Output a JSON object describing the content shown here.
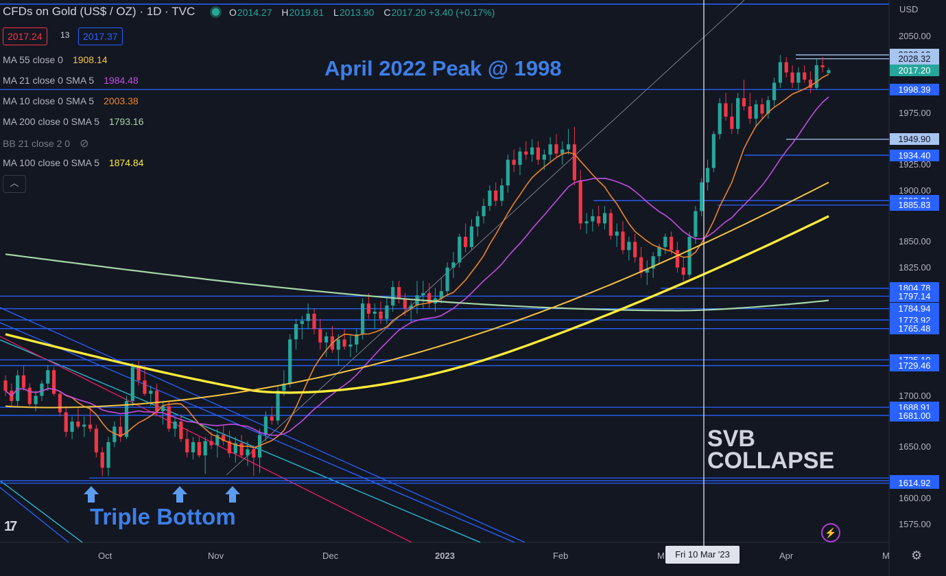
{
  "header": {
    "title": "CFDs on Gold (US$ / OZ) · 1D · TVC",
    "open_label": "O",
    "open": "2014.27",
    "high_label": "H",
    "high": "2019.81",
    "low_label": "L",
    "low": "2013.90",
    "close_label": "C",
    "close": "2017.20 +3.40 (+0.17%)",
    "sell": "2017.24",
    "spread": "13",
    "buy": "2017.37"
  },
  "indicators": [
    {
      "label": "MA 55 close 0",
      "value": "1908.14",
      "color": "#f5c542"
    },
    {
      "label": "MA 21 close 0 SMA 5",
      "value": "1984.48",
      "color": "#c34de1"
    },
    {
      "label": "MA 10 close 0 SMA 5",
      "value": "2003.38",
      "color": "#f0852b"
    },
    {
      "label": "MA 200 close 0 SMA 5",
      "value": "1793.16",
      "color": "#a5d6a7"
    },
    {
      "label": "BB 21 close 2 0",
      "value": "",
      "color": "#787b86"
    },
    {
      "label": "MA 100 close 0 SMA 5",
      "value": "1874.84",
      "color": "#ffeb3b"
    }
  ],
  "annotations": {
    "april_peak": "April 2022 Peak @ 1998",
    "svb_line1": "SVB",
    "svb_line2": "COLLAPSE",
    "triple_bottom": "Triple Bottom"
  },
  "axis": {
    "currency": "USD",
    "y_ticks": [
      "2050.00",
      "1975.00",
      "1925.00",
      "1900.00",
      "1850.00",
      "1825.00",
      "1700.00",
      "1650.00",
      "1600.00",
      "1575.00"
    ],
    "x_ticks": [
      "Oct",
      "Nov",
      "Dec",
      "2023",
      "Feb",
      "M",
      "Apr",
      "M"
    ],
    "crosshair_date": "Fri 10 Mar '23"
  },
  "chart_data": {
    "type": "candlestick",
    "ylim": [
      1560,
      2060
    ],
    "price_labels": [
      {
        "value": 2032.13,
        "text": "2032.13",
        "bg": "#a8c5f0",
        "fg": "#131722"
      },
      {
        "value": 2028.32,
        "text": "2028.32",
        "bg": "#a8c5f0",
        "fg": "#131722"
      },
      {
        "value": 2017.2,
        "text": "2017.20",
        "bg": "#26a69a",
        "fg": "#ffffff"
      },
      {
        "value": 1998.39,
        "text": "1998.39",
        "bg": "#2962ff",
        "fg": "#ffffff"
      },
      {
        "value": 1949.9,
        "text": "1949.90",
        "bg": "#a8c5f0",
        "fg": "#131722"
      },
      {
        "value": 1934.4,
        "text": "1934.40",
        "bg": "#2962ff",
        "fg": "#ffffff"
      },
      {
        "value": 1890.21,
        "text": "1890.21",
        "bg": "#2962ff",
        "fg": "#ffffff"
      },
      {
        "value": 1885.83,
        "text": "1885.83",
        "bg": "#2962ff",
        "fg": "#ffffff"
      },
      {
        "value": 1804.78,
        "text": "1804.78",
        "bg": "#2962ff",
        "fg": "#ffffff"
      },
      {
        "value": 1797.14,
        "text": "1797.14",
        "bg": "#2962ff",
        "fg": "#ffffff"
      },
      {
        "value": 1784.94,
        "text": "1784.94",
        "bg": "#2962ff",
        "fg": "#ffffff"
      },
      {
        "value": 1773.92,
        "text": "1773.92",
        "bg": "#2962ff",
        "fg": "#ffffff"
      },
      {
        "value": 1765.48,
        "text": "1765.48",
        "bg": "#2962ff",
        "fg": "#ffffff"
      },
      {
        "value": 1735.1,
        "text": "1735.10",
        "bg": "#2962ff",
        "fg": "#ffffff"
      },
      {
        "value": 1729.46,
        "text": "1729.46",
        "bg": "#2962ff",
        "fg": "#ffffff"
      },
      {
        "value": 1688.91,
        "text": "1688.91",
        "bg": "#2962ff",
        "fg": "#ffffff"
      },
      {
        "value": 1681.0,
        "text": "1681.00",
        "bg": "#2962ff",
        "fg": "#ffffff"
      },
      {
        "value": 1617.3,
        "text": "1617.30",
        "bg": "#2962ff",
        "fg": "#ffffff"
      },
      {
        "value": 1614.92,
        "text": "1614.92",
        "bg": "#2962ff",
        "fg": "#ffffff"
      }
    ],
    "candles": [
      [
        1715,
        1720,
        1700,
        1705
      ],
      [
        1705,
        1712,
        1690,
        1695
      ],
      [
        1695,
        1725,
        1690,
        1720
      ],
      [
        1720,
        1730,
        1705,
        1708
      ],
      [
        1708,
        1712,
        1690,
        1692
      ],
      [
        1692,
        1705,
        1685,
        1700
      ],
      [
        1700,
        1715,
        1695,
        1712
      ],
      [
        1712,
        1730,
        1705,
        1725
      ],
      [
        1725,
        1728,
        1700,
        1702
      ],
      [
        1702,
        1705,
        1680,
        1684
      ],
      [
        1684,
        1690,
        1660,
        1665
      ],
      [
        1665,
        1680,
        1658,
        1675
      ],
      [
        1675,
        1688,
        1668,
        1670
      ],
      [
        1670,
        1680,
        1660,
        1672
      ],
      [
        1672,
        1690,
        1665,
        1668
      ],
      [
        1668,
        1672,
        1640,
        1645
      ],
      [
        1645,
        1650,
        1622,
        1630
      ],
      [
        1630,
        1660,
        1622,
        1655
      ],
      [
        1655,
        1675,
        1650,
        1670
      ],
      [
        1670,
        1680,
        1655,
        1660
      ],
      [
        1660,
        1700,
        1658,
        1695
      ],
      [
        1695,
        1732,
        1690,
        1728
      ],
      [
        1728,
        1734,
        1710,
        1715
      ],
      [
        1715,
        1730,
        1700,
        1702
      ],
      [
        1702,
        1710,
        1690,
        1705
      ],
      [
        1705,
        1712,
        1680,
        1685
      ],
      [
        1685,
        1695,
        1672,
        1690
      ],
      [
        1690,
        1695,
        1665,
        1668
      ],
      [
        1668,
        1680,
        1660,
        1675
      ],
      [
        1675,
        1682,
        1655,
        1658
      ],
      [
        1658,
        1668,
        1640,
        1645
      ],
      [
        1645,
        1660,
        1638,
        1655
      ],
      [
        1655,
        1660,
        1640,
        1642
      ],
      [
        1642,
        1660,
        1624,
        1656
      ],
      [
        1656,
        1665,
        1648,
        1652
      ],
      [
        1652,
        1668,
        1640,
        1662
      ],
      [
        1662,
        1672,
        1652,
        1656
      ],
      [
        1656,
        1666,
        1640,
        1644
      ],
      [
        1644,
        1660,
        1635,
        1654
      ],
      [
        1654,
        1662,
        1640,
        1642
      ],
      [
        1642,
        1656,
        1632,
        1648
      ],
      [
        1648,
        1652,
        1622,
        1640
      ],
      [
        1640,
        1668,
        1625,
        1662
      ],
      [
        1662,
        1685,
        1656,
        1680
      ],
      [
        1680,
        1690,
        1672,
        1676
      ],
      [
        1676,
        1710,
        1672,
        1705
      ],
      [
        1705,
        1725,
        1700,
        1712
      ],
      [
        1712,
        1760,
        1708,
        1755
      ],
      [
        1755,
        1775,
        1745,
        1770
      ],
      [
        1770,
        1778,
        1755,
        1773
      ],
      [
        1773,
        1790,
        1765,
        1780
      ],
      [
        1780,
        1785,
        1760,
        1765
      ],
      [
        1765,
        1775,
        1745,
        1752
      ],
      [
        1752,
        1762,
        1738,
        1758
      ],
      [
        1758,
        1768,
        1742,
        1745
      ],
      [
        1745,
        1760,
        1730,
        1755
      ],
      [
        1755,
        1765,
        1745,
        1748
      ],
      [
        1748,
        1760,
        1738,
        1750
      ],
      [
        1750,
        1765,
        1742,
        1760
      ],
      [
        1760,
        1795,
        1755,
        1790
      ],
      [
        1790,
        1800,
        1775,
        1780
      ],
      [
        1780,
        1790,
        1765,
        1782
      ],
      [
        1782,
        1792,
        1770,
        1775
      ],
      [
        1775,
        1795,
        1770,
        1788
      ],
      [
        1788,
        1812,
        1782,
        1806
      ],
      [
        1806,
        1812,
        1790,
        1795
      ],
      [
        1795,
        1800,
        1778,
        1785
      ],
      [
        1785,
        1792,
        1772,
        1788
      ],
      [
        1788,
        1812,
        1780,
        1798
      ],
      [
        1798,
        1812,
        1785,
        1800
      ],
      [
        1800,
        1810,
        1785,
        1790
      ],
      [
        1790,
        1805,
        1782,
        1795
      ],
      [
        1795,
        1815,
        1790,
        1802
      ],
      [
        1802,
        1830,
        1798,
        1825
      ],
      [
        1825,
        1840,
        1815,
        1830
      ],
      [
        1830,
        1858,
        1825,
        1855
      ],
      [
        1855,
        1868,
        1840,
        1845
      ],
      [
        1845,
        1872,
        1842,
        1865
      ],
      [
        1865,
        1880,
        1855,
        1875
      ],
      [
        1875,
        1892,
        1868,
        1885
      ],
      [
        1885,
        1905,
        1880,
        1900
      ],
      [
        1900,
        1908,
        1885,
        1890
      ],
      [
        1890,
        1912,
        1885,
        1905
      ],
      [
        1905,
        1935,
        1898,
        1930
      ],
      [
        1930,
        1940,
        1918,
        1925
      ],
      [
        1925,
        1942,
        1915,
        1938
      ],
      [
        1938,
        1948,
        1930,
        1935
      ],
      [
        1935,
        1950,
        1928,
        1942
      ],
      [
        1942,
        1948,
        1925,
        1930
      ],
      [
        1930,
        1940,
        1920,
        1935
      ],
      [
        1935,
        1952,
        1928,
        1945
      ],
      [
        1945,
        1955,
        1932,
        1936
      ],
      [
        1936,
        1948,
        1925,
        1940
      ],
      [
        1940,
        1960,
        1935,
        1945
      ],
      [
        1945,
        1962,
        1905,
        1910
      ],
      [
        1910,
        1920,
        1862,
        1868
      ],
      [
        1868,
        1878,
        1858,
        1870
      ],
      [
        1870,
        1882,
        1860,
        1875
      ],
      [
        1875,
        1885,
        1865,
        1868
      ],
      [
        1868,
        1885,
        1862,
        1878
      ],
      [
        1878,
        1882,
        1852,
        1856
      ],
      [
        1856,
        1868,
        1845,
        1860
      ],
      [
        1860,
        1870,
        1838,
        1842
      ],
      [
        1842,
        1855,
        1832,
        1850
      ],
      [
        1850,
        1858,
        1830,
        1835
      ],
      [
        1835,
        1845,
        1815,
        1820
      ],
      [
        1820,
        1832,
        1808,
        1824
      ],
      [
        1824,
        1840,
        1815,
        1836
      ],
      [
        1836,
        1848,
        1828,
        1845
      ],
      [
        1845,
        1858,
        1838,
        1855
      ],
      [
        1855,
        1860,
        1838,
        1842
      ],
      [
        1842,
        1850,
        1820,
        1825
      ],
      [
        1825,
        1835,
        1812,
        1818
      ],
      [
        1818,
        1860,
        1815,
        1855
      ],
      [
        1855,
        1885,
        1848,
        1880
      ],
      [
        1880,
        1912,
        1875,
        1908
      ],
      [
        1908,
        1930,
        1900,
        1922
      ],
      [
        1922,
        1958,
        1918,
        1955
      ],
      [
        1955,
        1990,
        1950,
        1985
      ],
      [
        1985,
        1995,
        1968,
        1972
      ],
      [
        1972,
        1985,
        1955,
        1960
      ],
      [
        1960,
        1995,
        1955,
        1990
      ],
      [
        1990,
        2008,
        1978,
        1982
      ],
      [
        1982,
        1995,
        1965,
        1970
      ],
      [
        1970,
        1988,
        1962,
        1984
      ],
      [
        1984,
        1990,
        1970,
        1975
      ],
      [
        1975,
        1992,
        1970,
        1988
      ],
      [
        1988,
        2010,
        1982,
        2005
      ],
      [
        2005,
        2032,
        2000,
        2025
      ],
      [
        2025,
        2030,
        2010,
        2015
      ],
      [
        2015,
        2022,
        2000,
        2005
      ],
      [
        2005,
        2020,
        1998,
        2015
      ],
      [
        2015,
        2022,
        2005,
        2008
      ],
      [
        2008,
        2016,
        1995,
        2000
      ],
      [
        2000,
        2028,
        1998,
        2022
      ],
      [
        2022,
        2030,
        2015,
        2020
      ],
      [
        2014.27,
        2019.81,
        2013.9,
        2017.2
      ]
    ]
  }
}
